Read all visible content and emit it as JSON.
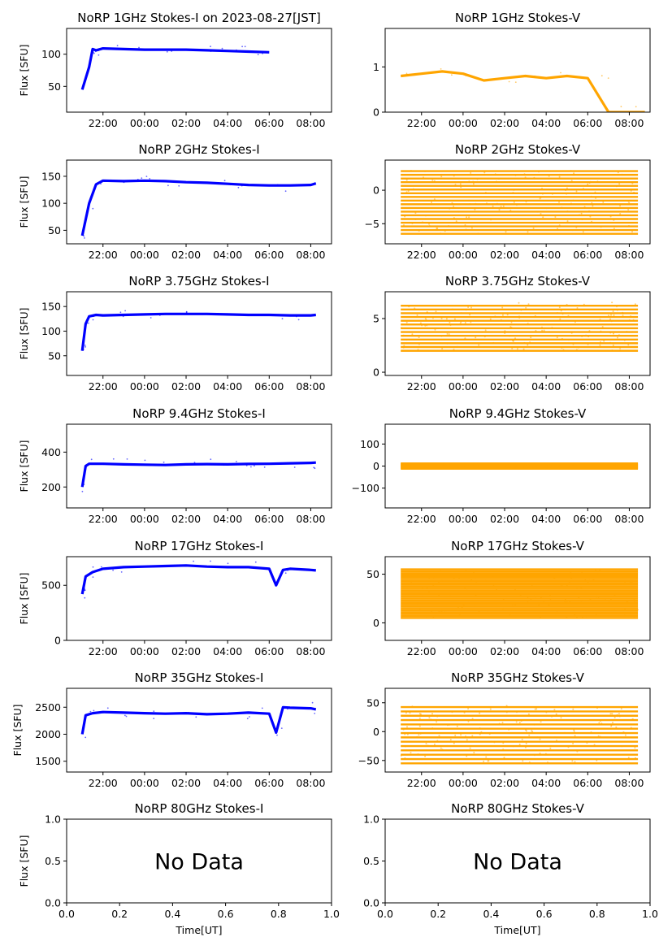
{
  "chart_data": [
    {
      "type": "scatter",
      "title": "NoRP 1GHz Stokes-I on 2023-08-27[JST]",
      "ylabel": "Flux [SFU]",
      "xlabel": "",
      "color": "#0000ff",
      "xlim": [
        "20:15",
        "09:00"
      ],
      "x_ticks": [
        "22:00",
        "00:00",
        "02:00",
        "04:00",
        "06:00",
        "08:00"
      ],
      "ylim": [
        10,
        140
      ],
      "y_ticks": [
        50,
        100
      ],
      "series": [
        {
          "x": [
            "21:00",
            "21:20",
            "21:30",
            "21:40",
            "22:00",
            "23:00",
            "00:00",
            "01:00",
            "02:00",
            "03:00",
            "04:00",
            "05:00",
            "06:00"
          ],
          "y": [
            45,
            80,
            108,
            106,
            109,
            108,
            107,
            107,
            107,
            106,
            105,
            104,
            103
          ]
        }
      ]
    },
    {
      "type": "scatter",
      "title": "NoRP 1GHz Stokes-V",
      "ylabel": "",
      "xlabel": "",
      "color": "#ffa500",
      "xlim": [
        "20:15",
        "09:00"
      ],
      "x_ticks": [
        "22:00",
        "00:00",
        "02:00",
        "04:00",
        "06:00",
        "08:00"
      ],
      "ylim": [
        0,
        1.85
      ],
      "y_ticks": [
        0,
        1
      ],
      "series": [
        {
          "x": [
            "21:00",
            "22:00",
            "23:00",
            "00:00",
            "01:00",
            "02:00",
            "03:00",
            "04:00",
            "05:00",
            "06:00",
            "07:00",
            "08:00",
            "08:45"
          ],
          "y": [
            0.8,
            0.85,
            0.9,
            0.85,
            0.7,
            0.75,
            0.8,
            0.75,
            0.8,
            0.75,
            0.0,
            0.0,
            0.0
          ]
        }
      ]
    },
    {
      "type": "scatter",
      "title": "NoRP 2GHz Stokes-I",
      "ylabel": "Flux [SFU]",
      "xlabel": "",
      "color": "#0000ff",
      "xlim": [
        "20:15",
        "09:00"
      ],
      "x_ticks": [
        "22:00",
        "00:00",
        "02:00",
        "04:00",
        "06:00",
        "08:00"
      ],
      "ylim": [
        25,
        180
      ],
      "y_ticks": [
        50,
        100,
        150
      ],
      "series": [
        {
          "x": [
            "21:00",
            "21:20",
            "21:40",
            "22:00",
            "23:00",
            "00:00",
            "01:00",
            "02:00",
            "03:00",
            "04:00",
            "05:00",
            "06:00",
            "07:00",
            "08:00",
            "08:15"
          ],
          "y": [
            40,
            100,
            135,
            142,
            141,
            142,
            141,
            139,
            138,
            136,
            134,
            133,
            133,
            134,
            137
          ]
        }
      ]
    },
    {
      "type": "scatter",
      "title": "NoRP 2GHz Stokes-V",
      "ylabel": "",
      "xlabel": "",
      "color": "#ffa500",
      "xlim": [
        "20:15",
        "09:00"
      ],
      "x_ticks": [
        "22:00",
        "00:00",
        "02:00",
        "04:00",
        "06:00",
        "08:00"
      ],
      "ylim": [
        -8,
        4.5
      ],
      "y_ticks": [
        -5,
        0
      ],
      "band": {
        "y_min": -6.5,
        "y_max": 3,
        "x_start": "21:00",
        "x_end": "08:25",
        "step": 0.55
      }
    },
    {
      "type": "scatter",
      "title": "NoRP 3.75GHz Stokes-I",
      "ylabel": "Flux [SFU]",
      "xlabel": "",
      "color": "#0000ff",
      "xlim": [
        "20:15",
        "09:00"
      ],
      "x_ticks": [
        "22:00",
        "00:00",
        "02:00",
        "04:00",
        "06:00",
        "08:00"
      ],
      "ylim": [
        10,
        180
      ],
      "y_ticks": [
        50,
        100,
        150
      ],
      "series": [
        {
          "x": [
            "21:00",
            "21:10",
            "21:20",
            "21:40",
            "22:00",
            "23:00",
            "00:00",
            "01:00",
            "02:00",
            "03:00",
            "04:00",
            "05:00",
            "06:00",
            "07:00",
            "08:00",
            "08:15"
          ],
          "y": [
            60,
            115,
            130,
            133,
            132,
            133,
            134,
            135,
            135,
            135,
            134,
            133,
            133,
            132,
            132,
            133
          ]
        }
      ]
    },
    {
      "type": "scatter",
      "title": "NoRP 3.75GHz Stokes-V",
      "ylabel": "",
      "xlabel": "",
      "color": "#ffa500",
      "xlim": [
        "20:15",
        "09:00"
      ],
      "x_ticks": [
        "22:00",
        "00:00",
        "02:00",
        "04:00",
        "06:00",
        "08:00"
      ],
      "ylim": [
        -0.3,
        7.5
      ],
      "y_ticks": [
        0,
        5
      ],
      "band": {
        "y_min": 2,
        "y_max": 6.5,
        "x_start": "21:00",
        "x_end": "08:25",
        "step": 0.35
      }
    },
    {
      "type": "scatter",
      "title": "NoRP 9.4GHz Stokes-I",
      "ylabel": "Flux [SFU]",
      "xlabel": "",
      "color": "#0000ff",
      "xlim": [
        "20:15",
        "09:00"
      ],
      "x_ticks": [
        "22:00",
        "00:00",
        "02:00",
        "04:00",
        "06:00",
        "08:00"
      ],
      "ylim": [
        80,
        560
      ],
      "y_ticks": [
        200,
        400
      ],
      "series": [
        {
          "x": [
            "21:00",
            "21:10",
            "21:20",
            "22:00",
            "23:00",
            "00:00",
            "01:00",
            "02:00",
            "03:00",
            "04:00",
            "05:00",
            "06:00",
            "07:00",
            "08:00",
            "08:15"
          ],
          "y": [
            200,
            320,
            333,
            333,
            330,
            328,
            326,
            330,
            331,
            330,
            332,
            333,
            336,
            338,
            340
          ]
        }
      ]
    },
    {
      "type": "scatter",
      "title": "NoRP 9.4GHz Stokes-V",
      "ylabel": "",
      "xlabel": "",
      "color": "#ffa500",
      "xlim": [
        "20:15",
        "09:00"
      ],
      "x_ticks": [
        "22:00",
        "00:00",
        "02:00",
        "04:00",
        "06:00",
        "08:00"
      ],
      "ylim": [
        -190,
        190
      ],
      "y_ticks": [
        -100,
        0,
        100
      ],
      "band": {
        "y_min": -12,
        "y_max": 12,
        "x_start": "21:00",
        "x_end": "08:25",
        "step": 4
      }
    },
    {
      "type": "scatter",
      "title": "NoRP 17GHz Stokes-I",
      "ylabel": "Flux [SFU]",
      "xlabel": "",
      "color": "#0000ff",
      "xlim": [
        "20:15",
        "09:00"
      ],
      "x_ticks": [
        "22:00",
        "00:00",
        "02:00",
        "04:00",
        "06:00",
        "08:00"
      ],
      "ylim": [
        0,
        760
      ],
      "y_ticks": [
        0,
        500
      ],
      "series": [
        {
          "x": [
            "21:00",
            "21:10",
            "21:30",
            "22:00",
            "23:00",
            "00:00",
            "01:00",
            "02:00",
            "03:00",
            "04:00",
            "05:00",
            "06:00",
            "06:20",
            "06:40",
            "07:00",
            "08:00",
            "08:15"
          ],
          "y": [
            420,
            580,
            620,
            650,
            665,
            670,
            675,
            680,
            670,
            665,
            665,
            650,
            500,
            640,
            650,
            640,
            635
          ]
        }
      ]
    },
    {
      "type": "scatter",
      "title": "NoRP 17GHz Stokes-V",
      "ylabel": "",
      "xlabel": "",
      "color": "#ffa500",
      "xlim": [
        "20:15",
        "09:00"
      ],
      "x_ticks": [
        "22:00",
        "00:00",
        "02:00",
        "04:00",
        "06:00",
        "08:00"
      ],
      "ylim": [
        -18,
        68
      ],
      "y_ticks": [
        0,
        50
      ],
      "band": {
        "y_min": 5,
        "y_max": 55,
        "x_start": "21:00",
        "x_end": "08:25",
        "step": 2
      }
    },
    {
      "type": "scatter",
      "title": "NoRP 35GHz Stokes-I",
      "ylabel": "Flux [SFU]",
      "xlabel": "",
      "color": "#0000ff",
      "xlim": [
        "20:15",
        "09:00"
      ],
      "x_ticks": [
        "22:00",
        "00:00",
        "02:00",
        "04:00",
        "06:00",
        "08:00"
      ],
      "ylim": [
        1300,
        2850
      ],
      "y_ticks": [
        1500,
        2000,
        2500
      ],
      "series": [
        {
          "x": [
            "21:00",
            "21:10",
            "21:30",
            "22:00",
            "23:00",
            "00:00",
            "01:00",
            "02:00",
            "03:00",
            "04:00",
            "05:00",
            "06:00",
            "06:20",
            "06:40",
            "07:00",
            "08:00",
            "08:15"
          ],
          "y": [
            2000,
            2350,
            2390,
            2410,
            2400,
            2390,
            2380,
            2390,
            2370,
            2380,
            2400,
            2380,
            2030,
            2500,
            2490,
            2480,
            2460
          ]
        }
      ]
    },
    {
      "type": "scatter",
      "title": "NoRP 35GHz Stokes-V",
      "ylabel": "",
      "xlabel": "",
      "color": "#ffa500",
      "xlim": [
        "20:15",
        "09:00"
      ],
      "x_ticks": [
        "22:00",
        "00:00",
        "02:00",
        "04:00",
        "06:00",
        "08:00"
      ],
      "ylim": [
        -70,
        75
      ],
      "y_ticks": [
        -50,
        0,
        50
      ],
      "band": {
        "y_min": -55,
        "y_max": 45,
        "x_start": "21:00",
        "x_end": "08:25",
        "step": 7.5
      }
    },
    {
      "type": "scatter",
      "title": "NoRP 80GHz Stokes-I",
      "ylabel": "Flux [SFU]",
      "xlabel": "Time[UT]",
      "color": "#0000ff",
      "xlim": [
        0.0,
        1.0
      ],
      "x_ticks": [
        "0.0",
        "0.2",
        "0.4",
        "0.6",
        "0.8",
        "1.0"
      ],
      "ylim": [
        0.0,
        1.0
      ],
      "y_ticks": [
        "0.0",
        "0.5",
        "1.0"
      ],
      "annotation": "No Data"
    },
    {
      "type": "scatter",
      "title": "NoRP 80GHz Stokes-V",
      "ylabel": "",
      "xlabel": "Time[UT]",
      "color": "#ffa500",
      "xlim": [
        0.0,
        1.0
      ],
      "x_ticks": [
        "0.0",
        "0.2",
        "0.4",
        "0.6",
        "0.8",
        "1.0"
      ],
      "ylim": [
        0.0,
        1.0
      ],
      "y_ticks": [
        "0.0",
        "0.5",
        "1.0"
      ],
      "annotation": "No Data"
    }
  ]
}
